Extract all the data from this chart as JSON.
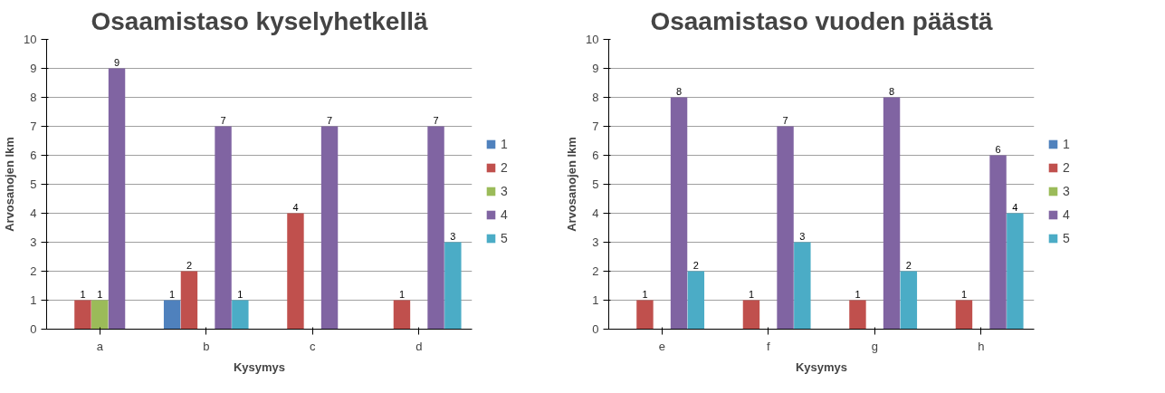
{
  "chart_data": [
    {
      "type": "bar",
      "title": "Osaamistaso kyselyhetkellä",
      "xlabel": "Kysymys",
      "ylabel": "Arvosanojen lkm",
      "categories": [
        "a",
        "b",
        "c",
        "d"
      ],
      "ylim": [
        0,
        10
      ],
      "yticks": [
        0,
        1,
        2,
        3,
        4,
        5,
        6,
        7,
        8,
        9,
        10
      ],
      "grid": "y",
      "legend": "right",
      "series": [
        {
          "name": "1",
          "color": "#4f81bd",
          "values": [
            0,
            1,
            0,
            0
          ],
          "value_labels": [
            null,
            "1",
            null,
            null
          ]
        },
        {
          "name": "2",
          "color": "#c0504d",
          "values": [
            1,
            2,
            4,
            1
          ],
          "value_labels": [
            "1",
            "2",
            "4",
            "1"
          ]
        },
        {
          "name": "3",
          "color": "#9bbb59",
          "values": [
            1,
            0,
            0,
            0
          ],
          "value_labels": [
            "1",
            null,
            null,
            null
          ]
        },
        {
          "name": "4",
          "color": "#8064a2",
          "values": [
            9,
            7,
            7,
            7
          ],
          "value_labels": [
            "9",
            "7",
            "7",
            "7"
          ]
        },
        {
          "name": "5",
          "color": "#4bacc6",
          "values": [
            0,
            1,
            0,
            3
          ],
          "value_labels": [
            null,
            "1",
            null,
            "3"
          ]
        }
      ]
    },
    {
      "type": "bar",
      "title": "Osaamistaso vuoden päästä",
      "xlabel": "Kysymys",
      "ylabel": "Arvosanojen lkm",
      "categories": [
        "e",
        "f",
        "g",
        "h"
      ],
      "ylim": [
        0,
        10
      ],
      "yticks": [
        0,
        1,
        2,
        3,
        4,
        5,
        6,
        7,
        8,
        9,
        10
      ],
      "grid": "y",
      "legend": "right",
      "series": [
        {
          "name": "1",
          "color": "#4f81bd",
          "values": [
            0,
            0,
            0,
            0
          ],
          "value_labels": [
            null,
            null,
            null,
            null
          ]
        },
        {
          "name": "2",
          "color": "#c0504d",
          "values": [
            1,
            1,
            1,
            1
          ],
          "value_labels": [
            "1",
            "1",
            "1",
            "1"
          ]
        },
        {
          "name": "3",
          "color": "#9bbb59",
          "values": [
            0,
            0,
            0,
            0
          ],
          "value_labels": [
            null,
            null,
            null,
            null
          ]
        },
        {
          "name": "4",
          "color": "#8064a2",
          "values": [
            8,
            7,
            8,
            6
          ],
          "value_labels": [
            "8",
            "7",
            "8",
            "6"
          ]
        },
        {
          "name": "5",
          "color": "#4bacc6",
          "values": [
            2,
            3,
            2,
            4
          ],
          "value_labels": [
            "2",
            "3",
            "2",
            "4"
          ]
        }
      ]
    }
  ]
}
